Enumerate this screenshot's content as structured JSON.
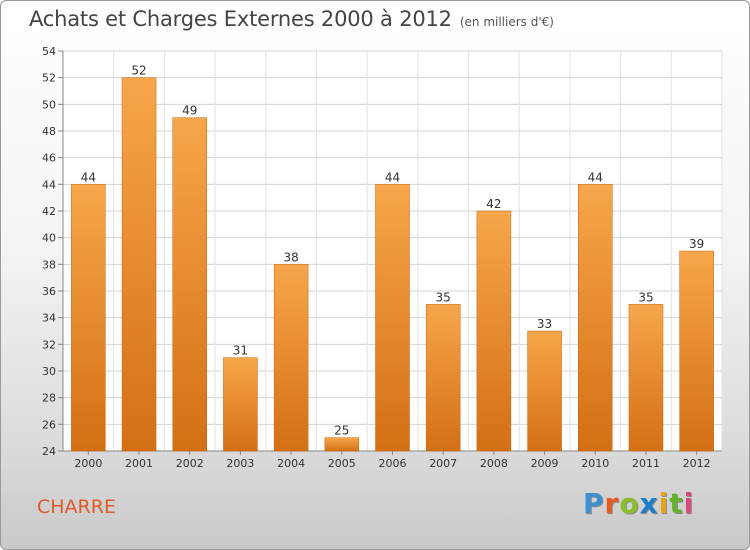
{
  "title": "Achats et Charges Externes 2000 à 2012",
  "subtitle": "(en milliers d'€)",
  "commune": "CHARRE",
  "brand": {
    "letters": [
      "P",
      "r",
      "o",
      "x",
      "i",
      "t",
      "i"
    ],
    "colors": [
      "#3f8fd0",
      "#e65a1e",
      "#8cbd2a",
      "#1d7fc9",
      "#e8a51a",
      "#63b22e",
      "#d94a7a"
    ]
  },
  "chart_data": {
    "type": "bar",
    "title": "Achats et Charges Externes 2000 à 2012",
    "ylabel": "en milliers d'€",
    "xlabel": "",
    "categories": [
      "2000",
      "2001",
      "2002",
      "2003",
      "2004",
      "2005",
      "2006",
      "2007",
      "2008",
      "2009",
      "2010",
      "2011",
      "2012"
    ],
    "values": [
      44,
      52,
      49,
      31,
      38,
      25,
      44,
      35,
      42,
      33,
      44,
      35,
      39
    ],
    "ylim": [
      24,
      54
    ],
    "yticks": [
      24,
      26,
      28,
      30,
      32,
      34,
      36,
      38,
      40,
      42,
      44,
      46,
      48,
      50,
      52,
      54
    ],
    "grid": true,
    "bar_color": "#f09a3e",
    "bar_color_dark": "#d46f14"
  }
}
